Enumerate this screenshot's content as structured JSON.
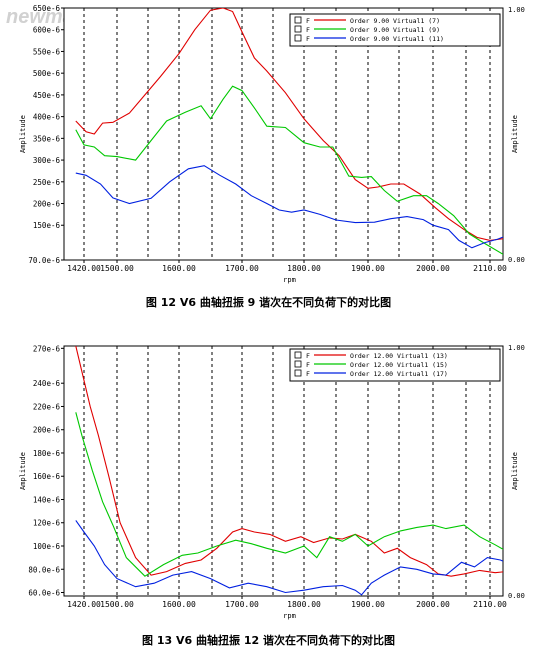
{
  "watermark": "newmaker.com",
  "captions": [
    "图 12   V6 曲轴扭振 9 谐次在不同负荷下的对比图",
    "图 13   V6 曲轴扭振 12 谐次在不同负荷下的对比图"
  ],
  "chart_data": [
    {
      "type": "line",
      "xlabel": "rpm",
      "ylabel": "Amplitude",
      "right_label": "Amplitude",
      "right_ticks": [
        "1.00",
        "0.00"
      ],
      "x_ticks": [
        "1420.00",
        "1500.00",
        "1600.00",
        "1700.00",
        "1800.00",
        "1900.00",
        "2000.00",
        "2110.00"
      ],
      "y_ticks": [
        {
          "label": "650e-6",
          "v": 650
        },
        {
          "label": "600e-6",
          "v": 600
        },
        {
          "label": "550e-6",
          "v": 550
        },
        {
          "label": "500e-6",
          "v": 500
        },
        {
          "label": "450e-6",
          "v": 450
        },
        {
          "label": "400e-6",
          "v": 400
        },
        {
          "label": "350e-6",
          "v": 350
        },
        {
          "label": "300e-6",
          "v": 300
        },
        {
          "label": "250e-6",
          "v": 250
        },
        {
          "label": "200e-6",
          "v": 200
        },
        {
          "label": "150e-6",
          "v": 150
        },
        {
          "label": "70.0e-6",
          "v": 70
        }
      ],
      "ylim": [
        70,
        650
      ],
      "xlim": [
        1400,
        2140
      ],
      "legend_placement": "top-right",
      "series": [
        {
          "name": "Order 9.00 Virtual1 (7)",
          "legend_flag": "F",
          "color": "#e00000",
          "x": [
            1400,
            1425,
            1445,
            1465,
            1490,
            1520,
            1545,
            1570,
            1600,
            1625,
            1650,
            1670,
            1685,
            1700,
            1720,
            1740,
            1770,
            1800,
            1830,
            1855,
            1880,
            1900,
            1915,
            1935,
            1955,
            1980,
            2005,
            2030,
            2060,
            2085,
            2110,
            2140
          ],
          "y": [
            390,
            365,
            360,
            385,
            387,
            408,
            450,
            492,
            545,
            600,
            645,
            650,
            642,
            595,
            535,
            505,
            455,
            395,
            345,
            310,
            255,
            235,
            238,
            245,
            245,
            222,
            190,
            165,
            140,
            122,
            115,
            120
          ]
        },
        {
          "name": "Order 9.00 Virtual1 (9)",
          "legend_flag": "F",
          "color": "#00c800",
          "x": [
            1400,
            1420,
            1445,
            1470,
            1500,
            1530,
            1555,
            1580,
            1610,
            1635,
            1650,
            1670,
            1685,
            1700,
            1720,
            1740,
            1770,
            1800,
            1825,
            1845,
            1870,
            1890,
            1905,
            1925,
            1945,
            1970,
            1990,
            2010,
            2040,
            2070,
            2100,
            2140
          ],
          "y": [
            370,
            335,
            330,
            310,
            308,
            300,
            345,
            390,
            410,
            425,
            395,
            440,
            470,
            460,
            420,
            378,
            375,
            340,
            330,
            330,
            263,
            260,
            262,
            230,
            205,
            218,
            218,
            200,
            172,
            130,
            108,
            80
          ]
        },
        {
          "name": "Order 9.00 Virtual1 (11)",
          "legend_flag": "F",
          "color": "#0020e0",
          "x": [
            1400,
            1425,
            1460,
            1490,
            1520,
            1555,
            1585,
            1615,
            1640,
            1665,
            1690,
            1715,
            1740,
            1760,
            1780,
            1800,
            1825,
            1850,
            1880,
            1910,
            1935,
            1960,
            1985,
            2000,
            2030,
            2050,
            2075,
            2100,
            2125,
            2140
          ],
          "y": [
            270,
            265,
            245,
            213,
            200,
            212,
            250,
            280,
            287,
            265,
            245,
            218,
            200,
            185,
            180,
            185,
            175,
            162,
            156,
            157,
            165,
            170,
            163,
            150,
            140,
            115,
            98,
            110,
            118,
            125
          ]
        }
      ]
    },
    {
      "type": "line",
      "xlabel": "rpm",
      "ylabel": "Amplitude",
      "right_label": "Amplitude",
      "right_ticks": [
        "1.00",
        "0.00"
      ],
      "x_ticks": [
        "1420.00",
        "1500.00",
        "1600.00",
        "1700.00",
        "1800.00",
        "1900.00",
        "2000.00",
        "2110.00"
      ],
      "y_ticks": [
        {
          "label": "270e-6",
          "v": 270
        },
        {
          "label": "240e-6",
          "v": 240
        },
        {
          "label": "220e-6",
          "v": 220
        },
        {
          "label": "200e-6",
          "v": 200
        },
        {
          "label": "180e-6",
          "v": 180
        },
        {
          "label": "160e-6",
          "v": 160
        },
        {
          "label": "140e-6",
          "v": 140
        },
        {
          "label": "120e-6",
          "v": 120
        },
        {
          "label": "100e-6",
          "v": 100
        },
        {
          "label": "80.0e-6",
          "v": 80
        },
        {
          "label": "60.0e-6",
          "v": 60
        }
      ],
      "ylim": [
        57,
        272
      ],
      "xlim": [
        1400,
        2140
      ],
      "legend_placement": "top-right",
      "series": [
        {
          "name": "Order 12.00 Virtual1 (13)",
          "legend_flag": "F",
          "color": "#e00000",
          "x": [
            1400,
            1415,
            1435,
            1455,
            1480,
            1505,
            1530,
            1555,
            1580,
            1610,
            1635,
            1660,
            1685,
            1700,
            1720,
            1745,
            1770,
            1795,
            1815,
            1840,
            1860,
            1880,
            1905,
            1925,
            1945,
            1965,
            1990,
            2010,
            2035,
            2060,
            2090,
            2120,
            2140
          ],
          "y": [
            272,
            250,
            220,
            195,
            160,
            120,
            90,
            75,
            78,
            85,
            88,
            98,
            112,
            115,
            112,
            110,
            104,
            108,
            103,
            107,
            106,
            110,
            104,
            94,
            98,
            90,
            84,
            76,
            74,
            76,
            79,
            77,
            78
          ]
        },
        {
          "name": "Order 12.00 Virtual1 (15)",
          "legend_flag": "F",
          "color": "#00c800",
          "x": [
            1400,
            1415,
            1440,
            1465,
            1490,
            1515,
            1545,
            1575,
            1605,
            1630,
            1660,
            1690,
            1715,
            1740,
            1770,
            1800,
            1820,
            1840,
            1860,
            1880,
            1900,
            1925,
            1950,
            1975,
            2000,
            2025,
            2060,
            2090,
            2120,
            2140
          ],
          "y": [
            215,
            195,
            165,
            138,
            118,
            90,
            74,
            84,
            92,
            94,
            100,
            105,
            102,
            98,
            94,
            100,
            90,
            108,
            104,
            110,
            100,
            108,
            113,
            116,
            118,
            115,
            118,
            108,
            101,
            96
          ]
        },
        {
          "name": "Order 12.00 Virtual1 (17)",
          "legend_flag": "F",
          "color": "#0020e0",
          "x": [
            1400,
            1420,
            1445,
            1470,
            1500,
            1530,
            1560,
            1590,
            1620,
            1650,
            1680,
            1710,
            1740,
            1770,
            1800,
            1830,
            1860,
            1880,
            1890,
            1905,
            1925,
            1950,
            1975,
            2000,
            2025,
            2055,
            2080,
            2105,
            2130,
            2140
          ],
          "y": [
            122,
            112,
            100,
            84,
            72,
            65,
            68,
            75,
            78,
            72,
            64,
            68,
            65,
            60,
            62,
            65,
            66,
            62,
            58,
            68,
            75,
            82,
            80,
            76,
            75,
            86,
            82,
            90,
            88,
            86
          ]
        }
      ]
    }
  ]
}
